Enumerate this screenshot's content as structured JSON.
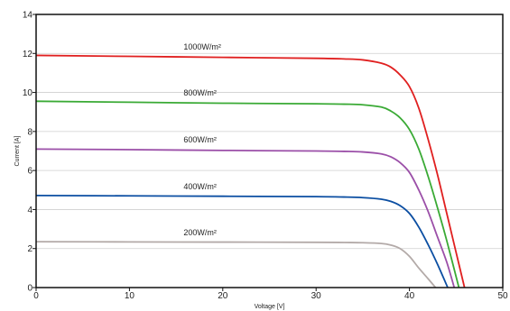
{
  "chart_data": {
    "type": "line",
    "title": "",
    "xlabel": "Voltage [V]",
    "ylabel": "Current [A]",
    "xlim": [
      0,
      50
    ],
    "ylim": [
      0,
      14
    ],
    "xticks": [
      "0",
      "10",
      "20",
      "30",
      "40",
      "50"
    ],
    "yticks": [
      "0",
      "2",
      "4",
      "6",
      "8",
      "10",
      "12",
      "14"
    ],
    "grid": "horizontal",
    "series": [
      {
        "name": "1000W/m²",
        "color": "#e02020",
        "x": [
          0,
          10,
          20,
          30,
          33,
          35,
          37,
          38,
          39,
          40,
          41,
          42,
          43,
          44,
          45,
          45.9
        ],
        "y": [
          11.9,
          11.85,
          11.8,
          11.75,
          11.72,
          11.67,
          11.5,
          11.3,
          10.9,
          10.3,
          9.2,
          7.6,
          5.8,
          3.8,
          1.8,
          0
        ]
      },
      {
        "name": "800W/m²",
        "color": "#3aaa35",
        "x": [
          0,
          10,
          20,
          30,
          33,
          35,
          37,
          38,
          39,
          40,
          41,
          42,
          43,
          44,
          45.3
        ],
        "y": [
          9.55,
          9.5,
          9.45,
          9.42,
          9.4,
          9.37,
          9.25,
          9.05,
          8.7,
          8.1,
          7.1,
          5.7,
          4.1,
          2.4,
          0
        ]
      },
      {
        "name": "600W/m²",
        "color": "#9b4fa8",
        "x": [
          0,
          10,
          20,
          30,
          33,
          35,
          37,
          38,
          39,
          40,
          41,
          42,
          43,
          44,
          44.8
        ],
        "y": [
          7.1,
          7.07,
          7.03,
          7.0,
          6.98,
          6.95,
          6.85,
          6.7,
          6.4,
          5.9,
          5.0,
          3.9,
          2.6,
          1.3,
          0
        ]
      },
      {
        "name": "400W/m²",
        "color": "#0b4ea2",
        "x": [
          0,
          10,
          20,
          30,
          33,
          35,
          37,
          38,
          39,
          40,
          41,
          42,
          43,
          44.1
        ],
        "y": [
          4.72,
          4.7,
          4.68,
          4.66,
          4.64,
          4.61,
          4.53,
          4.42,
          4.2,
          3.8,
          3.1,
          2.2,
          1.2,
          0
        ]
      },
      {
        "name": "200W/m²",
        "color": "#b3aaa8",
        "x": [
          0,
          10,
          20,
          30,
          33,
          35,
          37,
          38,
          39,
          40,
          41,
          42,
          42.8
        ],
        "y": [
          2.35,
          2.34,
          2.33,
          2.32,
          2.31,
          2.3,
          2.26,
          2.18,
          2.0,
          1.6,
          1.0,
          0.45,
          0
        ]
      }
    ],
    "label_anchors": [
      {
        "series": 0,
        "x": 15.8,
        "y": 12.05
      },
      {
        "series": 1,
        "x": 15.8,
        "y": 9.7
      },
      {
        "series": 2,
        "x": 15.8,
        "y": 7.3
      },
      {
        "series": 3,
        "x": 15.8,
        "y": 4.9
      },
      {
        "series": 4,
        "x": 15.8,
        "y": 2.55
      }
    ]
  }
}
